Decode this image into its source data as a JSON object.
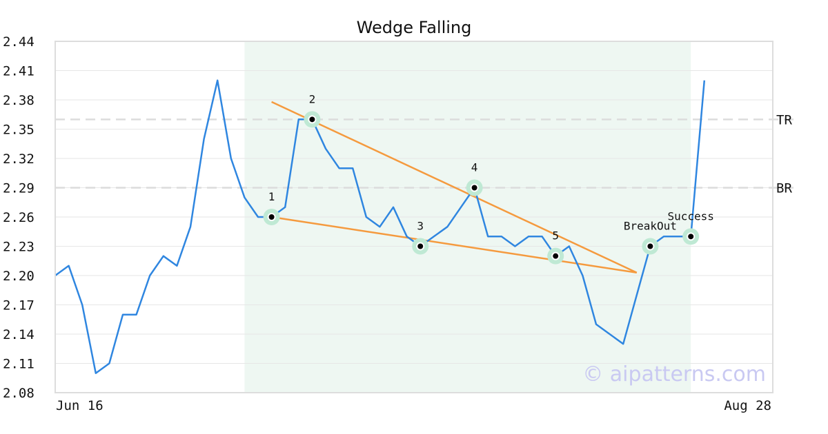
{
  "chart_data": {
    "type": "line",
    "title": "Wedge Falling",
    "xlabel": "",
    "ylabel": "",
    "ylim": [
      2.08,
      2.44
    ],
    "yticks": [
      "2.08",
      "2.11",
      "2.14",
      "2.17",
      "2.20",
      "2.23",
      "2.26",
      "2.29",
      "2.32",
      "2.35",
      "2.38",
      "2.41",
      "2.44"
    ],
    "x_start_label": "Jun 16",
    "x_end_label": "Aug 28",
    "series": [
      {
        "values": [
          2.2,
          2.21,
          2.17,
          2.1,
          2.11,
          2.16,
          2.16,
          2.2,
          2.22,
          2.21,
          2.25,
          2.34,
          2.4,
          2.32,
          2.28,
          2.26,
          2.26,
          2.27,
          2.36,
          2.36,
          2.33,
          2.31,
          2.31,
          2.26,
          2.25,
          2.27,
          2.24,
          2.23,
          2.24,
          2.25,
          2.27,
          2.29,
          2.24,
          2.24,
          2.23,
          2.24,
          2.24,
          2.22,
          2.23,
          2.2,
          2.15,
          2.14,
          2.13,
          2.18,
          2.23,
          2.24,
          2.24,
          2.24,
          2.4
        ],
        "color": "#2f86e0"
      }
    ],
    "pattern_region": {
      "start_index": 14,
      "end_index": 47,
      "color": "#eef7f2"
    },
    "levels": [
      {
        "label": "TR",
        "value": 2.36
      },
      {
        "label": "BR",
        "value": 2.29
      }
    ],
    "trendlines": [
      {
        "from": [
          16,
          2.378
        ],
        "to": [
          43,
          2.203
        ],
        "color": "#f59a3e"
      },
      {
        "from": [
          16,
          2.26
        ],
        "to": [
          43,
          2.203
        ],
        "color": "#f59a3e"
      }
    ],
    "points": [
      {
        "label": "1",
        "index": 16,
        "value": 2.26
      },
      {
        "label": "2",
        "index": 19,
        "value": 2.36
      },
      {
        "label": "3",
        "index": 27,
        "value": 2.23
      },
      {
        "label": "4",
        "index": 31,
        "value": 2.29
      },
      {
        "label": "5",
        "index": 37,
        "value": 2.22
      },
      {
        "label": "BreakOut",
        "index": 44,
        "value": 2.23
      },
      {
        "label": "Success",
        "index": 47,
        "value": 2.24
      }
    ],
    "grid": true,
    "watermark": "© aipatterns.com"
  }
}
